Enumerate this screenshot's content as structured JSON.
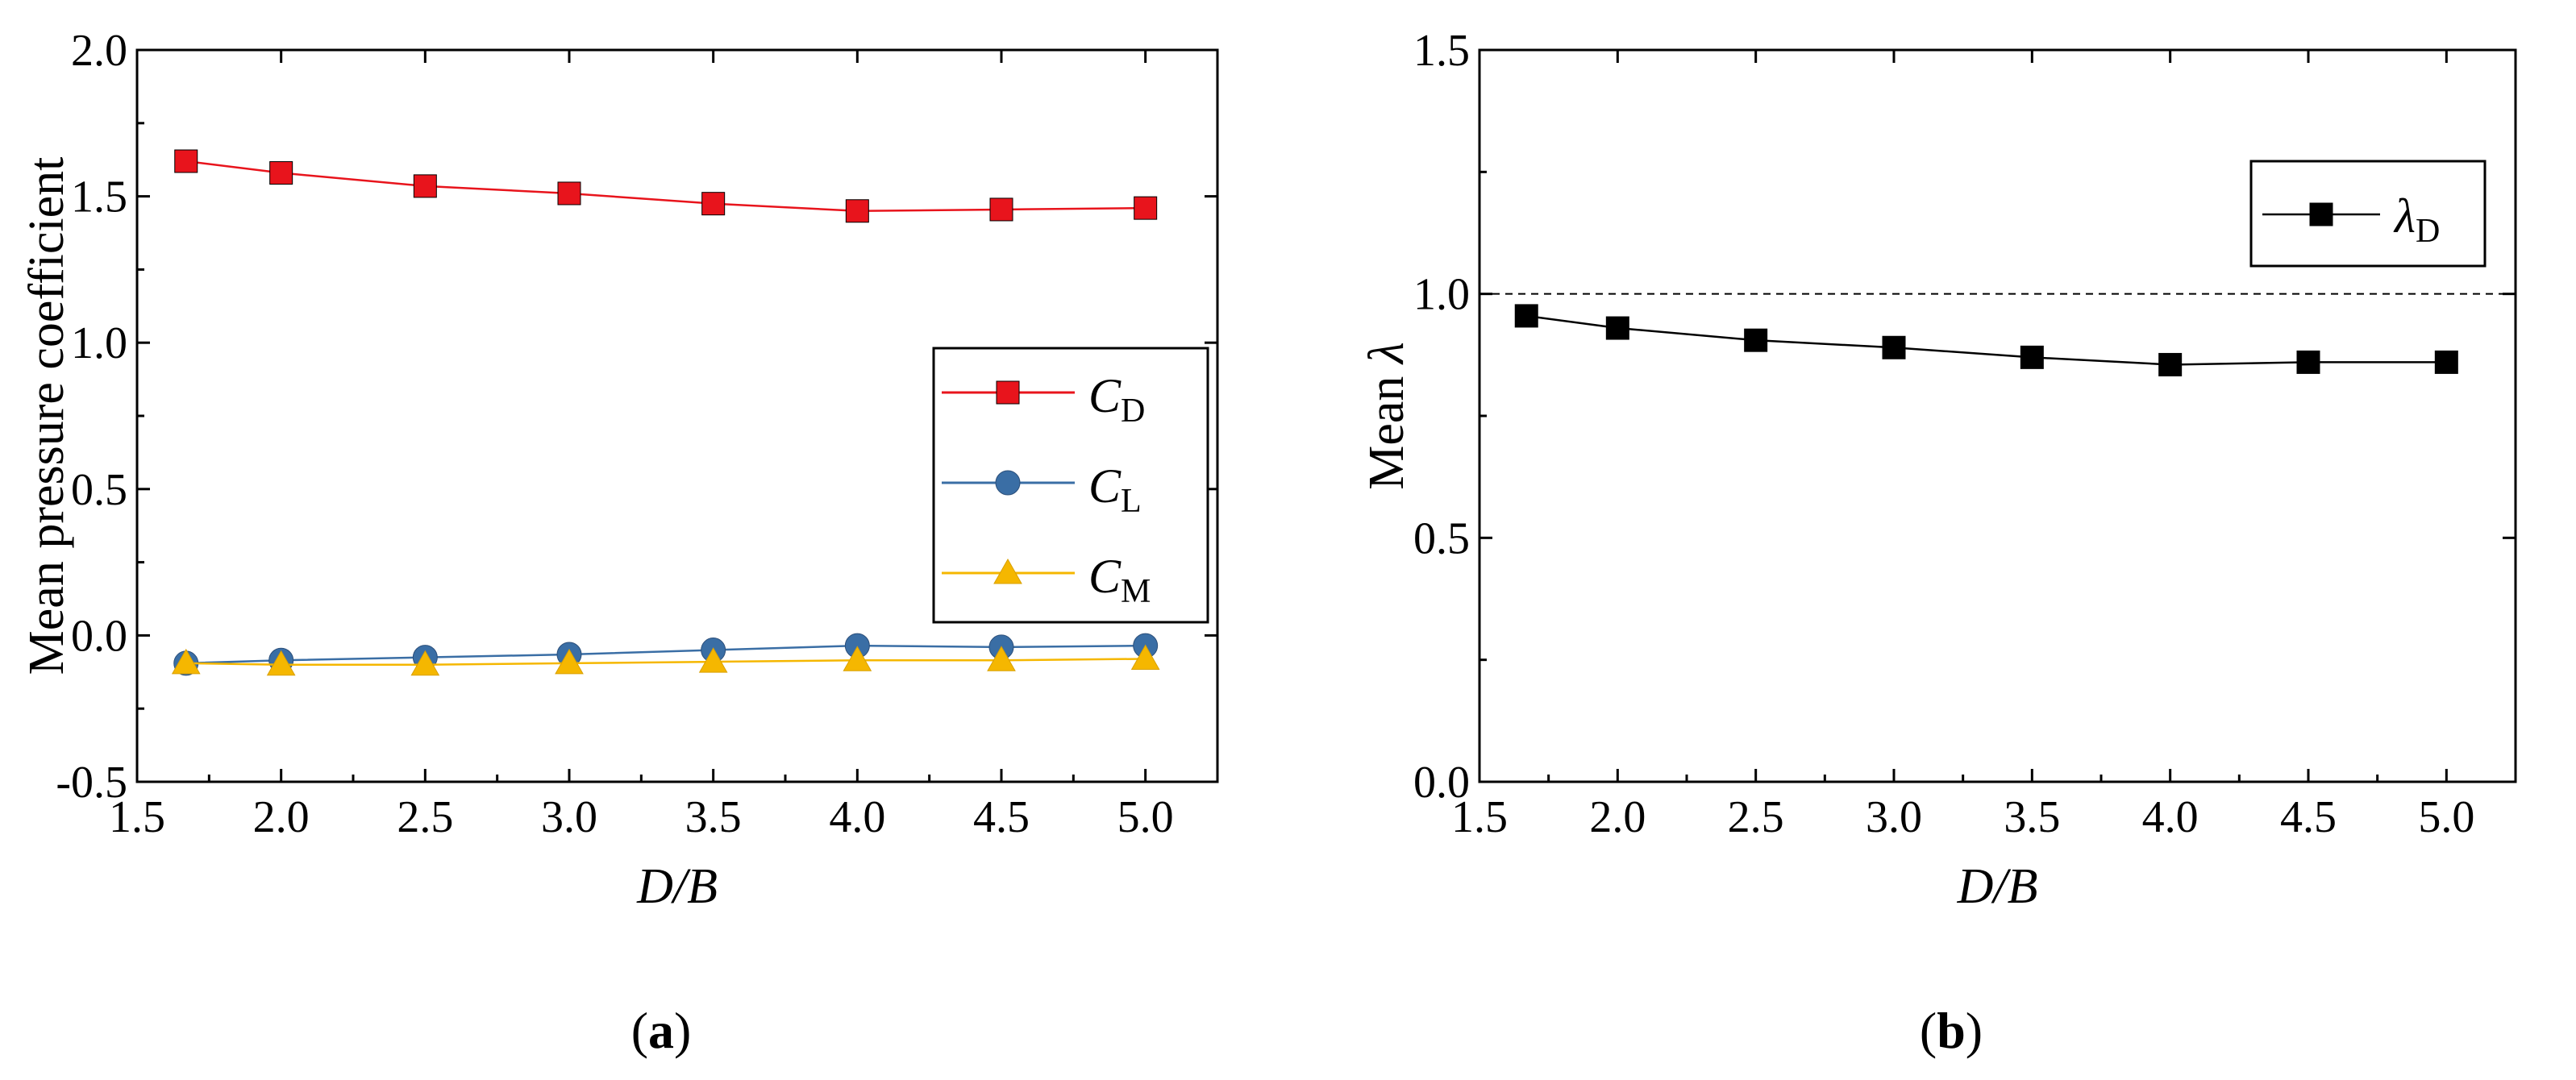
{
  "chart_data": [
    {
      "id": "a",
      "type": "line",
      "panel_label": {
        "open": "(",
        "letter": "a",
        "close": ")"
      },
      "xlabel": "D/B",
      "ylabel": "Mean pressure coefficient",
      "xlim": [
        1.5,
        5.25
      ],
      "ylim": [
        -0.5,
        2.0
      ],
      "xticks": [
        "1.5",
        "2.0",
        "2.5",
        "3.0",
        "3.5",
        "4.0",
        "4.5",
        "5.0"
      ],
      "xtick_values": [
        1.5,
        2.0,
        2.5,
        3.0,
        3.5,
        4.0,
        4.5,
        5.0
      ],
      "yticks": [
        "-0.5",
        "0.0",
        "0.5",
        "1.0",
        "1.5",
        "2.0"
      ],
      "ytick_values": [
        -0.5,
        0.0,
        0.5,
        1.0,
        1.5,
        2.0
      ],
      "x": [
        1.67,
        2.0,
        2.5,
        3.0,
        3.5,
        4.0,
        4.5,
        5.0
      ],
      "legend_position": "center-right",
      "series": [
        {
          "name": "C_D",
          "label_main": "C",
          "label_sub": "D",
          "color": "#e8141c",
          "marker": "square",
          "values": [
            1.62,
            1.58,
            1.535,
            1.51,
            1.475,
            1.45,
            1.455,
            1.46
          ]
        },
        {
          "name": "C_L",
          "label_main": "C",
          "label_sub": "L",
          "color": "#3a6ea5",
          "marker": "circle",
          "values": [
            -0.095,
            -0.085,
            -0.075,
            -0.065,
            -0.05,
            -0.035,
            -0.04,
            -0.035
          ]
        },
        {
          "name": "C_M",
          "label_main": "C",
          "label_sub": "M",
          "color": "#f5b700",
          "marker": "triangle",
          "values": [
            -0.095,
            -0.1,
            -0.1,
            -0.095,
            -0.09,
            -0.085,
            -0.085,
            -0.08
          ]
        }
      ]
    },
    {
      "id": "b",
      "type": "line",
      "panel_label": {
        "open": "(",
        "letter": "b",
        "close": ")"
      },
      "xlabel": "D/B",
      "ylabel_text": "Mean ",
      "ylabel_symbol": "λ",
      "xlim": [
        1.5,
        5.25
      ],
      "ylim": [
        0.0,
        1.5
      ],
      "xticks": [
        "1.5",
        "2.0",
        "2.5",
        "3.0",
        "3.5",
        "4.0",
        "4.5",
        "5.0"
      ],
      "xtick_values": [
        1.5,
        2.0,
        2.5,
        3.0,
        3.5,
        4.0,
        4.5,
        5.0
      ],
      "yticks": [
        "0.0",
        "0.5",
        "1.0",
        "1.5"
      ],
      "ytick_values": [
        0.0,
        0.5,
        1.0,
        1.5
      ],
      "x": [
        1.67,
        2.0,
        2.5,
        3.0,
        3.5,
        4.0,
        4.5,
        5.0
      ],
      "reference_line": 1.0,
      "legend_position": "top-right",
      "series": [
        {
          "name": "λ_D",
          "label_main": "λ",
          "label_sub": "D",
          "color": "#000000",
          "marker": "square",
          "values": [
            0.955,
            0.93,
            0.905,
            0.89,
            0.87,
            0.855,
            0.86,
            0.86
          ]
        }
      ]
    }
  ]
}
